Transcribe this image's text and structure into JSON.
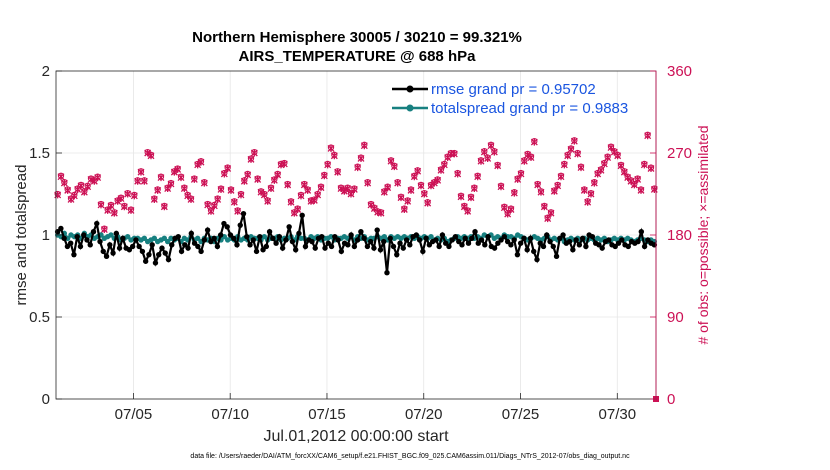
{
  "chart_data": {
    "type": "line",
    "title_line1": "Northern Hemisphere 30005 / 30210 = 99.321%",
    "title_line2": "AIRS_TEMPERATURE @ 688 hPa",
    "xlabel": "Jul.01,2012 00:00:00 start",
    "ylabel": "rmse and totalspread",
    "ylabel_right": "# of obs: o=possible; ×=assimilated",
    "xlim": [
      1,
      32
    ],
    "ylim": [
      0,
      2
    ],
    "ylim_right": [
      0,
      360
    ],
    "xticks": [
      5,
      10,
      15,
      20,
      25,
      30
    ],
    "xtick_labels": [
      "07/05",
      "07/10",
      "07/15",
      "07/20",
      "07/25",
      "07/30"
    ],
    "yticks": [
      0,
      0.5,
      1,
      1.5,
      2
    ],
    "ytick_labels": [
      "0",
      "0.5",
      "1",
      "1.5",
      "2"
    ],
    "yticks_right": [
      0,
      90,
      180,
      270,
      360
    ],
    "ytick_labels_right": [
      "0",
      "90",
      "180",
      "270",
      "360"
    ],
    "footnote": "data file: /Users/raeder/DAI/ATM_forcXX/CAM6_setup/f.e21.FHIST_BGC.f09_025.CAM6assim.011/Diags_NTrS_2012-07/obs_diag_output.nc",
    "series": [
      {
        "name": "rmse grand pr = 0.95702",
        "color": "#000000",
        "marker": "circle",
        "values": [
          1.02,
          1.04,
          0.98,
          0.93,
          0.95,
          0.88,
          0.99,
          0.93,
          1.0,
          0.97,
          0.94,
          1.02,
          1.07,
          0.96,
          0.9,
          0.87,
          0.94,
          0.89,
          1.01,
          0.92,
          0.98,
          0.92,
          0.91,
          0.93,
          0.97,
          0.93,
          0.9,
          0.84,
          0.88,
          0.94,
          0.83,
          0.88,
          0.92,
          0.89,
          0.85,
          0.94,
          0.98,
          0.99,
          0.9,
          0.94,
          0.92,
          1.01,
          0.95,
          0.93,
          0.9,
          0.97,
          1.03,
          0.96,
          0.98,
          0.93,
          1.0,
          1.07,
          1.05,
          1.0,
          0.98,
          0.94,
          1.06,
          1.13,
          0.99,
          0.94,
          0.97,
          0.9,
          0.99,
          0.91,
          0.93,
          1.02,
          0.98,
          0.95,
          0.99,
          0.92,
          0.97,
          1.05,
          0.96,
          0.91,
          1.01,
          1.12,
          0.93,
          0.97,
          0.96,
          0.92,
          0.98,
          0.99,
          0.92,
          0.95,
          0.93,
          0.99,
          0.97,
          0.9,
          0.95,
          0.94,
          1.0,
          0.93,
          0.97,
          1.02,
          0.98,
          0.93,
          0.96,
          0.92,
          1.03,
          0.91,
          0.96,
          0.77,
          0.98,
          0.93,
          0.88,
          0.95,
          0.92,
          0.97,
          0.94,
          0.99,
          1.0,
          0.97,
          0.9,
          0.98,
          0.94,
          0.96,
          0.97,
          0.93,
          1.0,
          0.95,
          0.93,
          0.97,
          0.99,
          0.96,
          0.94,
          0.98,
          0.95,
          0.98,
          1.02,
          0.95,
          0.97,
          0.94,
          0.99,
          0.93,
          0.92,
          0.95,
          0.97,
          0.99,
          0.96,
          0.94,
          0.97,
          0.88,
          0.95,
          0.98,
          0.91,
          0.98,
          0.9,
          0.85,
          0.95,
          0.93,
          1.0,
          0.96,
          0.93,
          0.87,
          0.98,
          1.0,
          0.95,
          0.96,
          0.91,
          0.97,
          0.94,
          0.98,
          0.93,
          1.0,
          0.99,
          0.95,
          0.94,
          0.92,
          0.96,
          0.97,
          0.94,
          0.93,
          0.95,
          0.97,
          0.94,
          0.93,
          0.96,
          0.95,
          0.96,
          1.02,
          0.93,
          0.97,
          0.95,
          0.94
        ]
      },
      {
        "name": "totalspread grand pr = 0.9883",
        "color": "#178080",
        "marker": "circle",
        "values": [
          1.0,
          0.99,
          1.01,
          0.98,
          1.0,
          0.99,
          1.0,
          0.98,
          1.01,
          0.99,
          1.0,
          0.98,
          0.99,
          1.0,
          0.98,
          0.99,
          1.0,
          0.98,
          0.99,
          0.97,
          0.98,
          0.99,
          0.97,
          0.98,
          0.98,
          0.97,
          0.98,
          0.96,
          0.97,
          0.98,
          0.96,
          0.97,
          0.98,
          0.96,
          0.98,
          0.97,
          0.98,
          0.96,
          0.98,
          0.97,
          0.99,
          0.97,
          0.98,
          0.96,
          0.98,
          0.97,
          0.98,
          0.96,
          0.98,
          0.97,
          0.99,
          0.97,
          0.98,
          0.97,
          0.99,
          0.97,
          0.98,
          0.97,
          0.99,
          0.98,
          0.98,
          0.97,
          0.99,
          0.97,
          0.98,
          0.98,
          0.99,
          0.97,
          0.98,
          0.98,
          0.99,
          0.97,
          0.99,
          0.98,
          0.98,
          0.97,
          0.99,
          0.98,
          0.99,
          0.97,
          0.98,
          0.98,
          0.99,
          0.97,
          0.98,
          0.98,
          0.99,
          0.98,
          0.99,
          0.97,
          0.99,
          0.98,
          0.99,
          0.97,
          0.98,
          0.98,
          0.99,
          0.98,
          0.99,
          0.97,
          0.99,
          0.98,
          0.99,
          0.98,
          0.99,
          0.98,
          0.99,
          0.98,
          0.99,
          0.98,
          0.99,
          0.98,
          0.99,
          0.97,
          0.98,
          0.97,
          0.98,
          0.96,
          0.97,
          0.98,
          0.99,
          0.98,
          0.99,
          0.98,
          0.99,
          0.98,
          0.99,
          0.98,
          1.0,
          0.99,
          1.0,
          0.98,
          0.99,
          0.98,
          1.0,
          0.99,
          0.99,
          0.98,
          1.0,
          0.99,
          0.98,
          0.97,
          0.98,
          0.99,
          0.98,
          0.97,
          0.98,
          0.99,
          0.97,
          0.98,
          0.97,
          0.98,
          0.96,
          0.97,
          0.98,
          0.97,
          0.98,
          0.97,
          0.98,
          0.97,
          0.98,
          0.97,
          0.98,
          0.97,
          0.98,
          0.96,
          0.97,
          0.98,
          0.97,
          0.98,
          0.97,
          0.98,
          0.97,
          0.96,
          0.97,
          0.98,
          0.97,
          0.96,
          0.97,
          0.96
        ]
      }
    ],
    "obs_counts": {
      "name": "# of obs",
      "color": "#cc1155",
      "possible": [
        225,
        245,
        238,
        230,
        220,
        224,
        231,
        235,
        228,
        234,
        242,
        240,
        244,
        214,
        187,
        208,
        213,
        205,
        218,
        221,
        212,
        226,
        208,
        224,
        240,
        250,
        240,
        271,
        268,
        220,
        230,
        244,
        212,
        232,
        237,
        250,
        253,
        244,
        232,
        224,
        220,
        242,
        258,
        261,
        238,
        214,
        207,
        213,
        220,
        231,
        248,
        254,
        230,
        217,
        207,
        225,
        240,
        247,
        264,
        271,
        242,
        228,
        225,
        218,
        232,
        241,
        247,
        258,
        259,
        236,
        217,
        205,
        209,
        224,
        236,
        230,
        218,
        219,
        225,
        233,
        246,
        258,
        276,
        268,
        250,
        232,
        229,
        232,
        226,
        231,
        255,
        265,
        279,
        238,
        214,
        210,
        206,
        205,
        228,
        233,
        262,
        256,
        238,
        222,
        209,
        218,
        230,
        245,
        251,
        235,
        226,
        216,
        235,
        238,
        241,
        252,
        258,
        266,
        270,
        270,
        248,
        223,
        212,
        207,
        222,
        232,
        245,
        262,
        272,
        265,
        279,
        272,
        257,
        234,
        211,
        204,
        209,
        227,
        242,
        248,
        262,
        269,
        266,
        283,
        236,
        228,
        212,
        199,
        205,
        229,
        235,
        245,
        258,
        268,
        275,
        284,
        270,
        255,
        230,
        217,
        226,
        238,
        248,
        252,
        259,
        266,
        277,
        272,
        268,
        257,
        250,
        244,
        240,
        236,
        242,
        230,
        258,
        290,
        254,
        231
      ],
      "assimilated": [
        224,
        244,
        237,
        229,
        219,
        223,
        230,
        234,
        227,
        233,
        241,
        239,
        243,
        213,
        186,
        207,
        212,
        204,
        217,
        220,
        211,
        225,
        207,
        223,
        239,
        249,
        239,
        270,
        267,
        219,
        229,
        243,
        211,
        231,
        236,
        249,
        252,
        243,
        231,
        223,
        219,
        241,
        257,
        260,
        237,
        213,
        206,
        212,
        219,
        230,
        247,
        253,
        229,
        216,
        206,
        224,
        239,
        246,
        263,
        270,
        241,
        227,
        224,
        217,
        231,
        240,
        246,
        257,
        258,
        235,
        216,
        204,
        208,
        223,
        235,
        229,
        217,
        218,
        224,
        232,
        245,
        257,
        275,
        267,
        249,
        231,
        228,
        231,
        225,
        230,
        254,
        264,
        278,
        237,
        213,
        209,
        205,
        204,
        227,
        232,
        261,
        255,
        237,
        221,
        208,
        217,
        229,
        244,
        250,
        234,
        225,
        215,
        234,
        237,
        240,
        251,
        257,
        265,
        269,
        269,
        247,
        222,
        211,
        206,
        221,
        231,
        244,
        261,
        271,
        264,
        278,
        271,
        256,
        233,
        210,
        203,
        208,
        226,
        241,
        247,
        261,
        268,
        265,
        282,
        235,
        227,
        211,
        198,
        204,
        228,
        234,
        244,
        257,
        267,
        274,
        283,
        269,
        254,
        229,
        216,
        225,
        237,
        247,
        251,
        258,
        265,
        276,
        271,
        267,
        256,
        249,
        243,
        239,
        235,
        241,
        229,
        257,
        289,
        253,
        230
      ]
    }
  }
}
